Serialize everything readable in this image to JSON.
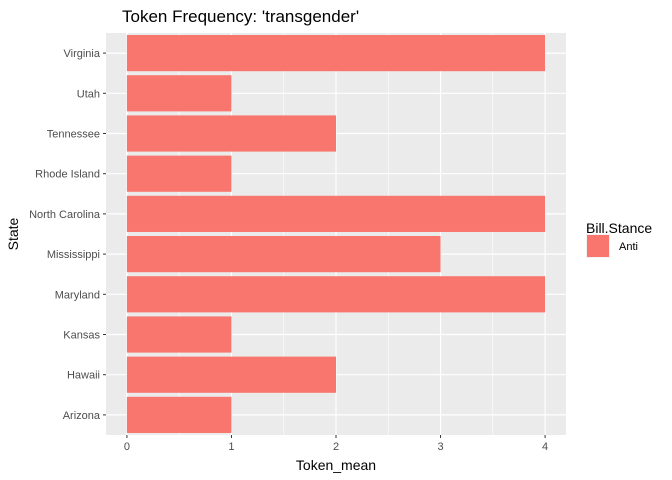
{
  "chart_data": {
    "type": "bar",
    "orientation": "horizontal",
    "title": "Token Frequency: 'transgender'",
    "xlabel": "Token_mean",
    "ylabel": "State",
    "categories": [
      "Arizona",
      "Hawaii",
      "Kansas",
      "Maryland",
      "Mississippi",
      "North Carolina",
      "Rhode Island",
      "Tennessee",
      "Utah",
      "Virginia"
    ],
    "series": [
      {
        "name": "Anti",
        "values": [
          1,
          2,
          1,
          4,
          3,
          4,
          1,
          2,
          1,
          4
        ]
      }
    ],
    "xlim": [
      -0.2,
      4.2
    ],
    "xticks": [
      0,
      1,
      2,
      3,
      4
    ],
    "grid": true,
    "legend": {
      "title": "Bill.Stance",
      "position": "right",
      "entries": [
        "Anti"
      ]
    },
    "colors": {
      "bar": "#F8766D",
      "panel": "#EBEBEB",
      "grid": "#FFFFFF"
    }
  }
}
